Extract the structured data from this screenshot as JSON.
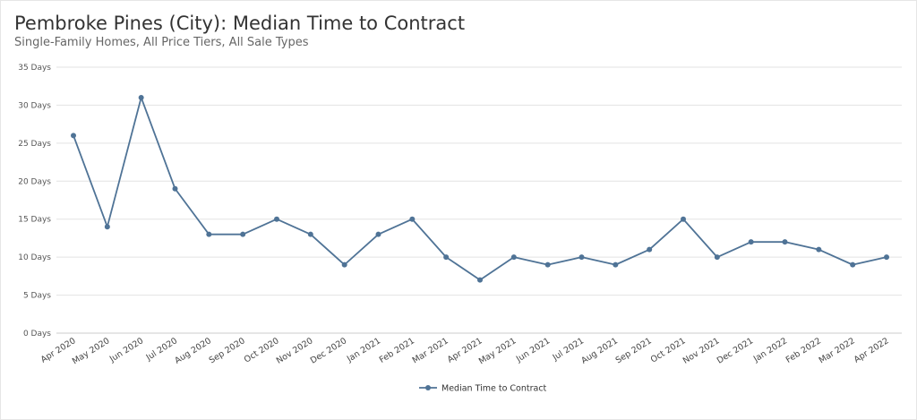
{
  "title": "Pembroke Pines (City): Median Time to Contract",
  "subtitle": "Single-Family Homes, All Price Tiers, All Sale Types",
  "chart_data": {
    "type": "line",
    "title": "Pembroke Pines (City): Median Time to Contract",
    "subtitle": "Single-Family Homes, All Price Tiers, All Sale Types",
    "categories": [
      "Apr 2020",
      "May 2020",
      "Jun 2020",
      "Jul 2020",
      "Aug 2020",
      "Sep 2020",
      "Oct 2020",
      "Nov 2020",
      "Dec 2020",
      "Jan 2021",
      "Feb 2021",
      "Mar 2021",
      "Apr 2021",
      "May 2021",
      "Jun 2021",
      "Jul 2021",
      "Aug 2021",
      "Sep 2021",
      "Oct 2021",
      "Nov 2021",
      "Dec 2021",
      "Jan 2022",
      "Feb 2022",
      "Mar 2022",
      "Apr 2022"
    ],
    "series": [
      {
        "name": "Median Time to Contract",
        "color": "#4f7396",
        "values": [
          26,
          14,
          31,
          19,
          13,
          13,
          15,
          13,
          9,
          13,
          15,
          10,
          7,
          10,
          9,
          10,
          9,
          11,
          15,
          10,
          12,
          12,
          11,
          9,
          10
        ]
      }
    ],
    "ylim": [
      0,
      35
    ],
    "yticks": [
      0,
      5,
      10,
      15,
      20,
      25,
      30,
      35
    ],
    "ytick_labels": [
      "0 Days",
      "5 Days",
      "10 Days",
      "15 Days",
      "20 Days",
      "25 Days",
      "30 Days",
      "35 Days"
    ],
    "grid": true,
    "legend_position": "bottom-center",
    "xlabel": "",
    "ylabel": ""
  }
}
